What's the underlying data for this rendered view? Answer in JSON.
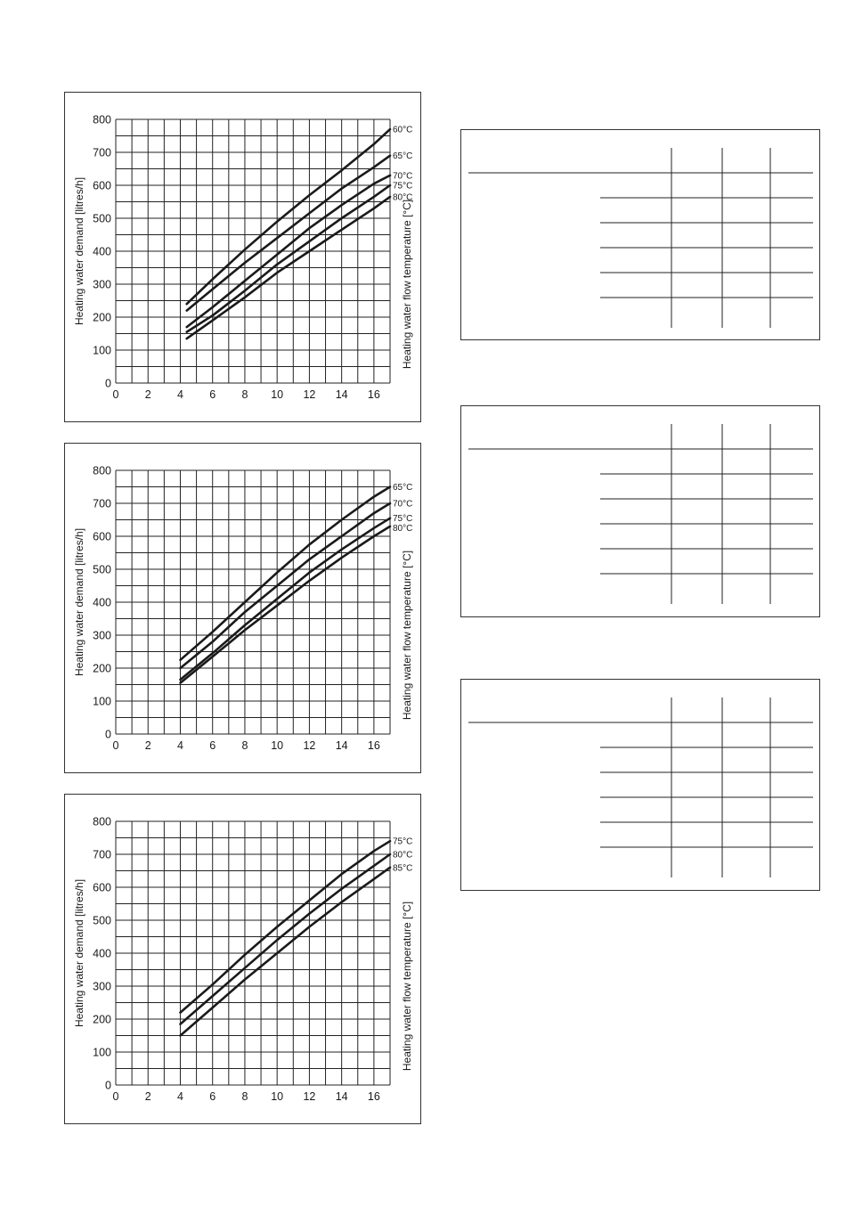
{
  "colors": {
    "ink": "#1a1a1a",
    "grid": "#222222",
    "panel_border": "#333333"
  },
  "chart_data": [
    {
      "type": "line",
      "title": "",
      "xlabel": "",
      "ylabel": "Heating water demand [litres/h]",
      "y2label": "Heating water flow temperature [°C]",
      "xlim": [
        0,
        17
      ],
      "ylim": [
        0,
        800
      ],
      "xticks": [
        0,
        2,
        4,
        6,
        8,
        10,
        12,
        14,
        16
      ],
      "yticks": [
        0,
        100,
        200,
        300,
        400,
        500,
        600,
        700,
        800
      ],
      "grid": true,
      "legend": "right-edge labels at line ends",
      "series": [
        {
          "name": "60°C",
          "x": [
            4.4,
            6,
            8,
            10,
            12,
            14,
            16,
            17
          ],
          "y": [
            240,
            315,
            405,
            490,
            570,
            645,
            725,
            770
          ]
        },
        {
          "name": "65°C",
          "x": [
            4.4,
            6,
            8,
            10,
            12,
            14,
            16,
            17
          ],
          "y": [
            220,
            285,
            365,
            440,
            515,
            590,
            655,
            690
          ]
        },
        {
          "name": "70°C",
          "x": [
            4.4,
            6,
            8,
            10,
            12,
            14,
            16,
            17
          ],
          "y": [
            170,
            230,
            310,
            390,
            470,
            540,
            605,
            630
          ]
        },
        {
          "name": "75°C",
          "x": [
            4.4,
            6,
            8,
            10,
            12,
            14,
            16,
            17
          ],
          "y": [
            155,
            205,
            280,
            360,
            430,
            500,
            565,
            600
          ]
        },
        {
          "name": "80°C",
          "x": [
            4.4,
            6,
            8,
            10,
            12,
            14,
            16,
            17
          ],
          "y": [
            135,
            190,
            260,
            335,
            400,
            465,
            530,
            565
          ]
        }
      ]
    },
    {
      "type": "line",
      "title": "",
      "xlabel": "",
      "ylabel": "Heating water demand [litres/h]",
      "y2label": "Heating water flow temperature [°C]",
      "xlim": [
        0,
        17
      ],
      "ylim": [
        0,
        800
      ],
      "xticks": [
        0,
        2,
        4,
        6,
        8,
        10,
        12,
        14,
        16
      ],
      "yticks": [
        0,
        100,
        200,
        300,
        400,
        500,
        600,
        700,
        800
      ],
      "grid": true,
      "legend": "right-edge labels at line ends",
      "series": [
        {
          "name": "65°C",
          "x": [
            4,
            6,
            8,
            10,
            12,
            14,
            16,
            17
          ],
          "y": [
            225,
            310,
            400,
            490,
            575,
            650,
            720,
            750
          ]
        },
        {
          "name": "70°C",
          "x": [
            4,
            6,
            8,
            10,
            12,
            14,
            16,
            17
          ],
          "y": [
            200,
            280,
            370,
            450,
            530,
            600,
            670,
            700
          ]
        },
        {
          "name": "75°C",
          "x": [
            4,
            6,
            8,
            10,
            12,
            14,
            16,
            17
          ],
          "y": [
            165,
            245,
            330,
            410,
            490,
            560,
            625,
            655
          ]
        },
        {
          "name": "80°C",
          "x": [
            4,
            6,
            8,
            10,
            12,
            14,
            16,
            17
          ],
          "y": [
            155,
            235,
            315,
            390,
            465,
            535,
            600,
            630
          ]
        }
      ]
    },
    {
      "type": "line",
      "title": "",
      "xlabel": "",
      "ylabel": "Heating water demand [litres/h]",
      "y2label": "Heating water flow temperature [°C]",
      "xlim": [
        0,
        17
      ],
      "ylim": [
        0,
        800
      ],
      "xticks": [
        0,
        2,
        4,
        6,
        8,
        10,
        12,
        14,
        16
      ],
      "yticks": [
        0,
        100,
        200,
        300,
        400,
        500,
        600,
        700,
        800
      ],
      "grid": true,
      "legend": "right-edge labels at line ends",
      "series": [
        {
          "name": "75°C",
          "x": [
            4,
            6,
            8,
            10,
            12,
            14,
            16,
            17
          ],
          "y": [
            220,
            305,
            395,
            480,
            560,
            640,
            710,
            740
          ]
        },
        {
          "name": "80°C",
          "x": [
            4,
            6,
            8,
            10,
            12,
            14,
            16,
            17
          ],
          "y": [
            185,
            270,
            355,
            440,
            520,
            595,
            665,
            700
          ]
        },
        {
          "name": "85°C",
          "x": [
            4,
            6,
            8,
            10,
            12,
            14,
            16,
            17
          ],
          "y": [
            150,
            235,
            320,
            400,
            480,
            555,
            625,
            660
          ]
        }
      ]
    }
  ]
}
